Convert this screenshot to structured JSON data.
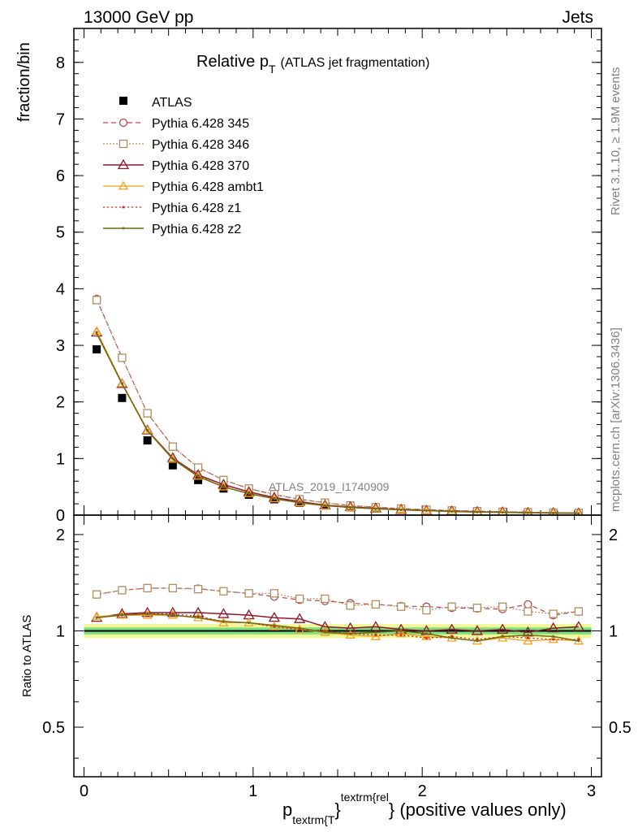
{
  "header": {
    "left": "13000 GeV pp",
    "right": "Jets"
  },
  "side_labels": {
    "rivet": "Rivet 3.1.10, ≥ 1.9M events",
    "mcplots": "mcplots.cern.ch [arXiv:1306.3436]"
  },
  "colors": {
    "ATLAS": "#000000",
    "p345": "#b5474f",
    "p346": "#b08e60",
    "p370": "#8b1a2a",
    "ambt1": "#f0a11e",
    "z1": "#d4231b",
    "z2": "#6f6a12",
    "band_inner": "#7fe07f",
    "band_outer": "#f2f79a"
  },
  "chart_data": [
    {
      "type": "line",
      "panel": "main",
      "title": "Relative p_T (ATLAS jet fragmentation)",
      "title_main": "Relative p",
      "title_sub": "T",
      "title_rest": "(ATLAS jet fragmentation)",
      "ylabel": "fraction/bin",
      "watermark": "ATLAS_2019_I1740909",
      "xlim": [
        -0.06,
        3.06
      ],
      "ylim": [
        0,
        8.6
      ],
      "yticks": [
        0,
        1,
        2,
        3,
        4,
        5,
        6,
        7,
        8
      ],
      "legend_position": "top-left",
      "x": [
        0.075,
        0.225,
        0.375,
        0.525,
        0.675,
        0.825,
        0.975,
        1.125,
        1.275,
        1.425,
        1.575,
        1.725,
        1.875,
        2.025,
        2.175,
        2.325,
        2.475,
        2.625,
        2.775,
        2.925
      ],
      "series": [
        {
          "name": "ATLAS",
          "key": "ATLAS",
          "values": [
            2.93,
            2.07,
            1.32,
            0.88,
            0.62,
            0.47,
            0.36,
            0.28,
            0.22,
            0.17,
            0.14,
            0.115,
            0.095,
            0.08,
            0.068,
            0.058,
            0.05,
            0.043,
            0.038,
            0.033
          ]
        },
        {
          "name": "Pythia 6.428 345",
          "key": "p345",
          "values": [
            3.82,
            2.78,
            1.8,
            1.21,
            0.84,
            0.62,
            0.47,
            0.36,
            0.28,
            0.22,
            0.17,
            0.14,
            0.115,
            0.097,
            0.082,
            0.069,
            0.06,
            0.053,
            0.043,
            0.039
          ]
        },
        {
          "name": "Pythia 6.428 346",
          "key": "p346",
          "values": [
            3.8,
            2.78,
            1.8,
            1.21,
            0.84,
            0.62,
            0.47,
            0.37,
            0.28,
            0.22,
            0.17,
            0.14,
            0.115,
            0.095,
            0.081,
            0.069,
            0.06,
            0.051,
            0.043,
            0.039
          ]
        },
        {
          "name": "Pythia 6.428 370",
          "key": "p370",
          "values": [
            3.23,
            2.32,
            1.5,
            1.01,
            0.71,
            0.54,
            0.41,
            0.31,
            0.24,
            0.175,
            0.145,
            0.12,
            0.097,
            0.08,
            0.07,
            0.059,
            0.052,
            0.043,
            0.04,
            0.034
          ]
        },
        {
          "name": "Pythia 6.428 ambt1",
          "key": "ambt1",
          "values": [
            3.25,
            2.33,
            1.5,
            0.99,
            0.69,
            0.5,
            0.38,
            0.29,
            0.22,
            0.165,
            0.135,
            0.11,
            0.092,
            0.077,
            0.065,
            0.054,
            0.048,
            0.04,
            0.036,
            0.031
          ]
        },
        {
          "name": "Pythia 6.428 z1",
          "key": "z1",
          "values": [
            3.23,
            2.33,
            1.5,
            1.0,
            0.69,
            0.5,
            0.38,
            0.29,
            0.22,
            0.17,
            0.137,
            0.112,
            0.093,
            0.077,
            0.065,
            0.055,
            0.048,
            0.041,
            0.036,
            0.031
          ]
        },
        {
          "name": "Pythia 6.428 z2",
          "key": "z2",
          "values": [
            3.21,
            2.32,
            1.49,
            0.99,
            0.68,
            0.5,
            0.38,
            0.29,
            0.22,
            0.168,
            0.137,
            0.114,
            0.095,
            0.08,
            0.065,
            0.054,
            0.049,
            0.042,
            0.036,
            0.031
          ]
        }
      ]
    },
    {
      "type": "line",
      "panel": "ratio",
      "ylabel": "Ratio to ATLAS",
      "xlabel": "p_textrm{T}^textrm{rel} (positive values only)",
      "xlabel_main": "p",
      "xlabel_sub": "textrm{T",
      "xlabel_brace": "}",
      "xlabel_sup": "textrm{rel",
      "xlabel_rest": "} (positive values only)",
      "xlim": [
        -0.06,
        3.06
      ],
      "ylim": [
        0.35,
        2.3
      ],
      "log_y": true,
      "yticks": [
        0.5,
        1,
        2
      ],
      "xticks": [
        0,
        1,
        2,
        3
      ],
      "x": [
        0.075,
        0.225,
        0.375,
        0.525,
        0.675,
        0.825,
        0.975,
        1.125,
        1.275,
        1.425,
        1.575,
        1.725,
        1.875,
        2.025,
        2.175,
        2.325,
        2.475,
        2.625,
        2.775,
        2.925
      ],
      "reference_band": {
        "inner": 0.025,
        "outer": 0.05
      },
      "series": [
        {
          "name": "Pythia 6.428 345",
          "key": "p345",
          "values": [
            1.3,
            1.34,
            1.36,
            1.36,
            1.355,
            1.33,
            1.31,
            1.28,
            1.25,
            1.24,
            1.22,
            1.21,
            1.195,
            1.19,
            1.18,
            1.175,
            1.17,
            1.21,
            1.12,
            1.15
          ]
        },
        {
          "name": "Pythia 6.428 346",
          "key": "p346",
          "values": [
            1.3,
            1.34,
            1.36,
            1.36,
            1.35,
            1.33,
            1.31,
            1.31,
            1.26,
            1.26,
            1.2,
            1.21,
            1.19,
            1.16,
            1.19,
            1.18,
            1.19,
            1.15,
            1.13,
            1.15
          ]
        },
        {
          "name": "Pythia 6.428 370",
          "key": "p370",
          "values": [
            1.1,
            1.13,
            1.14,
            1.14,
            1.14,
            1.13,
            1.12,
            1.1,
            1.09,
            1.03,
            1.02,
            1.03,
            1.01,
            1.0,
            1.01,
            1.0,
            1.01,
            0.99,
            1.02,
            1.03
          ]
        },
        {
          "name": "Pythia 6.428 ambt1",
          "key": "ambt1",
          "values": [
            1.11,
            1.12,
            1.12,
            1.12,
            1.1,
            1.06,
            1.06,
            1.03,
            1.01,
            0.99,
            0.97,
            0.96,
            0.98,
            0.96,
            0.95,
            0.93,
            0.95,
            0.93,
            0.94,
            0.93
          ]
        },
        {
          "name": "Pythia 6.428 z1",
          "key": "z1",
          "values": [
            1.1,
            1.12,
            1.13,
            1.13,
            1.11,
            1.07,
            1.06,
            1.03,
            1.01,
            1.0,
            0.98,
            0.97,
            0.97,
            0.95,
            0.96,
            0.94,
            0.96,
            0.95,
            0.94,
            0.94
          ]
        },
        {
          "name": "Pythia 6.428 z2",
          "key": "z2",
          "values": [
            1.1,
            1.12,
            1.13,
            1.12,
            1.1,
            1.07,
            1.06,
            1.04,
            1.02,
            0.99,
            0.98,
            0.99,
            1.0,
            0.98,
            0.95,
            0.93,
            0.96,
            0.97,
            0.96,
            0.93
          ]
        }
      ]
    }
  ]
}
